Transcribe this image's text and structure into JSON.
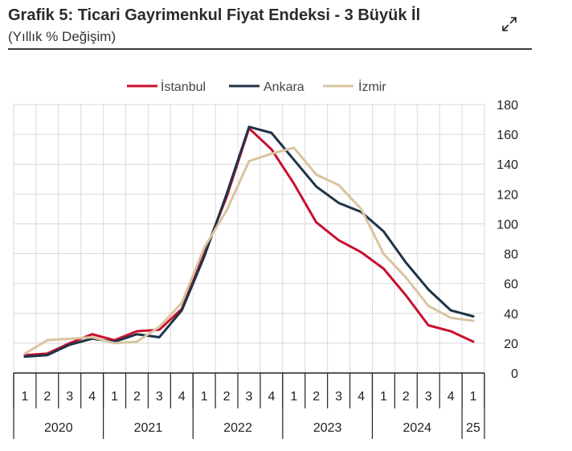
{
  "header": {
    "title": "Grafik 5: Ticari Gayrimenkul Fiyat Endeksi - 3 Büyük İl",
    "subtitle": "(Yıllık % Değişim)",
    "expand_icon": "expand-icon"
  },
  "chart_data": {
    "type": "line",
    "title": "Grafik 5: Ticari Gayrimenkul Fiyat Endeksi - 3 Büyük İl",
    "subtitle": "(Yıllık % Değişim)",
    "xlabel": "",
    "ylabel": "",
    "ylim": [
      0,
      180
    ],
    "yticks": [
      0,
      20,
      40,
      60,
      80,
      100,
      120,
      140,
      160,
      180
    ],
    "grid": true,
    "legend_position": "top",
    "quarters": [
      "1",
      "2",
      "3",
      "4",
      "1",
      "2",
      "3",
      "4",
      "1",
      "2",
      "3",
      "4",
      "1",
      "2",
      "3",
      "4",
      "1",
      "2",
      "3",
      "4",
      "1"
    ],
    "years": [
      {
        "label": "2020",
        "quarters": 4
      },
      {
        "label": "2021",
        "quarters": 4
      },
      {
        "label": "2022",
        "quarters": 4
      },
      {
        "label": "2023",
        "quarters": 4
      },
      {
        "label": "2024",
        "quarters": 4
      },
      {
        "label": "25",
        "quarters": 1
      }
    ],
    "series": [
      {
        "name": "İstanbul",
        "color": "#c8102e",
        "values": [
          12,
          13,
          20,
          26,
          22,
          28,
          29,
          43,
          80,
          118,
          164,
          150,
          127,
          101,
          89,
          81,
          70,
          52,
          32,
          28,
          21
        ]
      },
      {
        "name": "Ankara",
        "color": "#1f3447",
        "values": [
          11,
          12,
          19,
          23,
          21,
          26,
          24,
          42,
          78,
          120,
          165,
          161,
          143,
          125,
          114,
          108,
          95,
          74,
          56,
          42,
          38
        ]
      },
      {
        "name": "İzmir",
        "color": "#d9c4a0",
        "values": [
          13,
          22,
          23,
          24,
          20,
          21,
          31,
          47,
          84,
          109,
          142,
          147,
          151,
          133,
          126,
          110,
          80,
          64,
          45,
          37,
          35
        ]
      }
    ]
  }
}
